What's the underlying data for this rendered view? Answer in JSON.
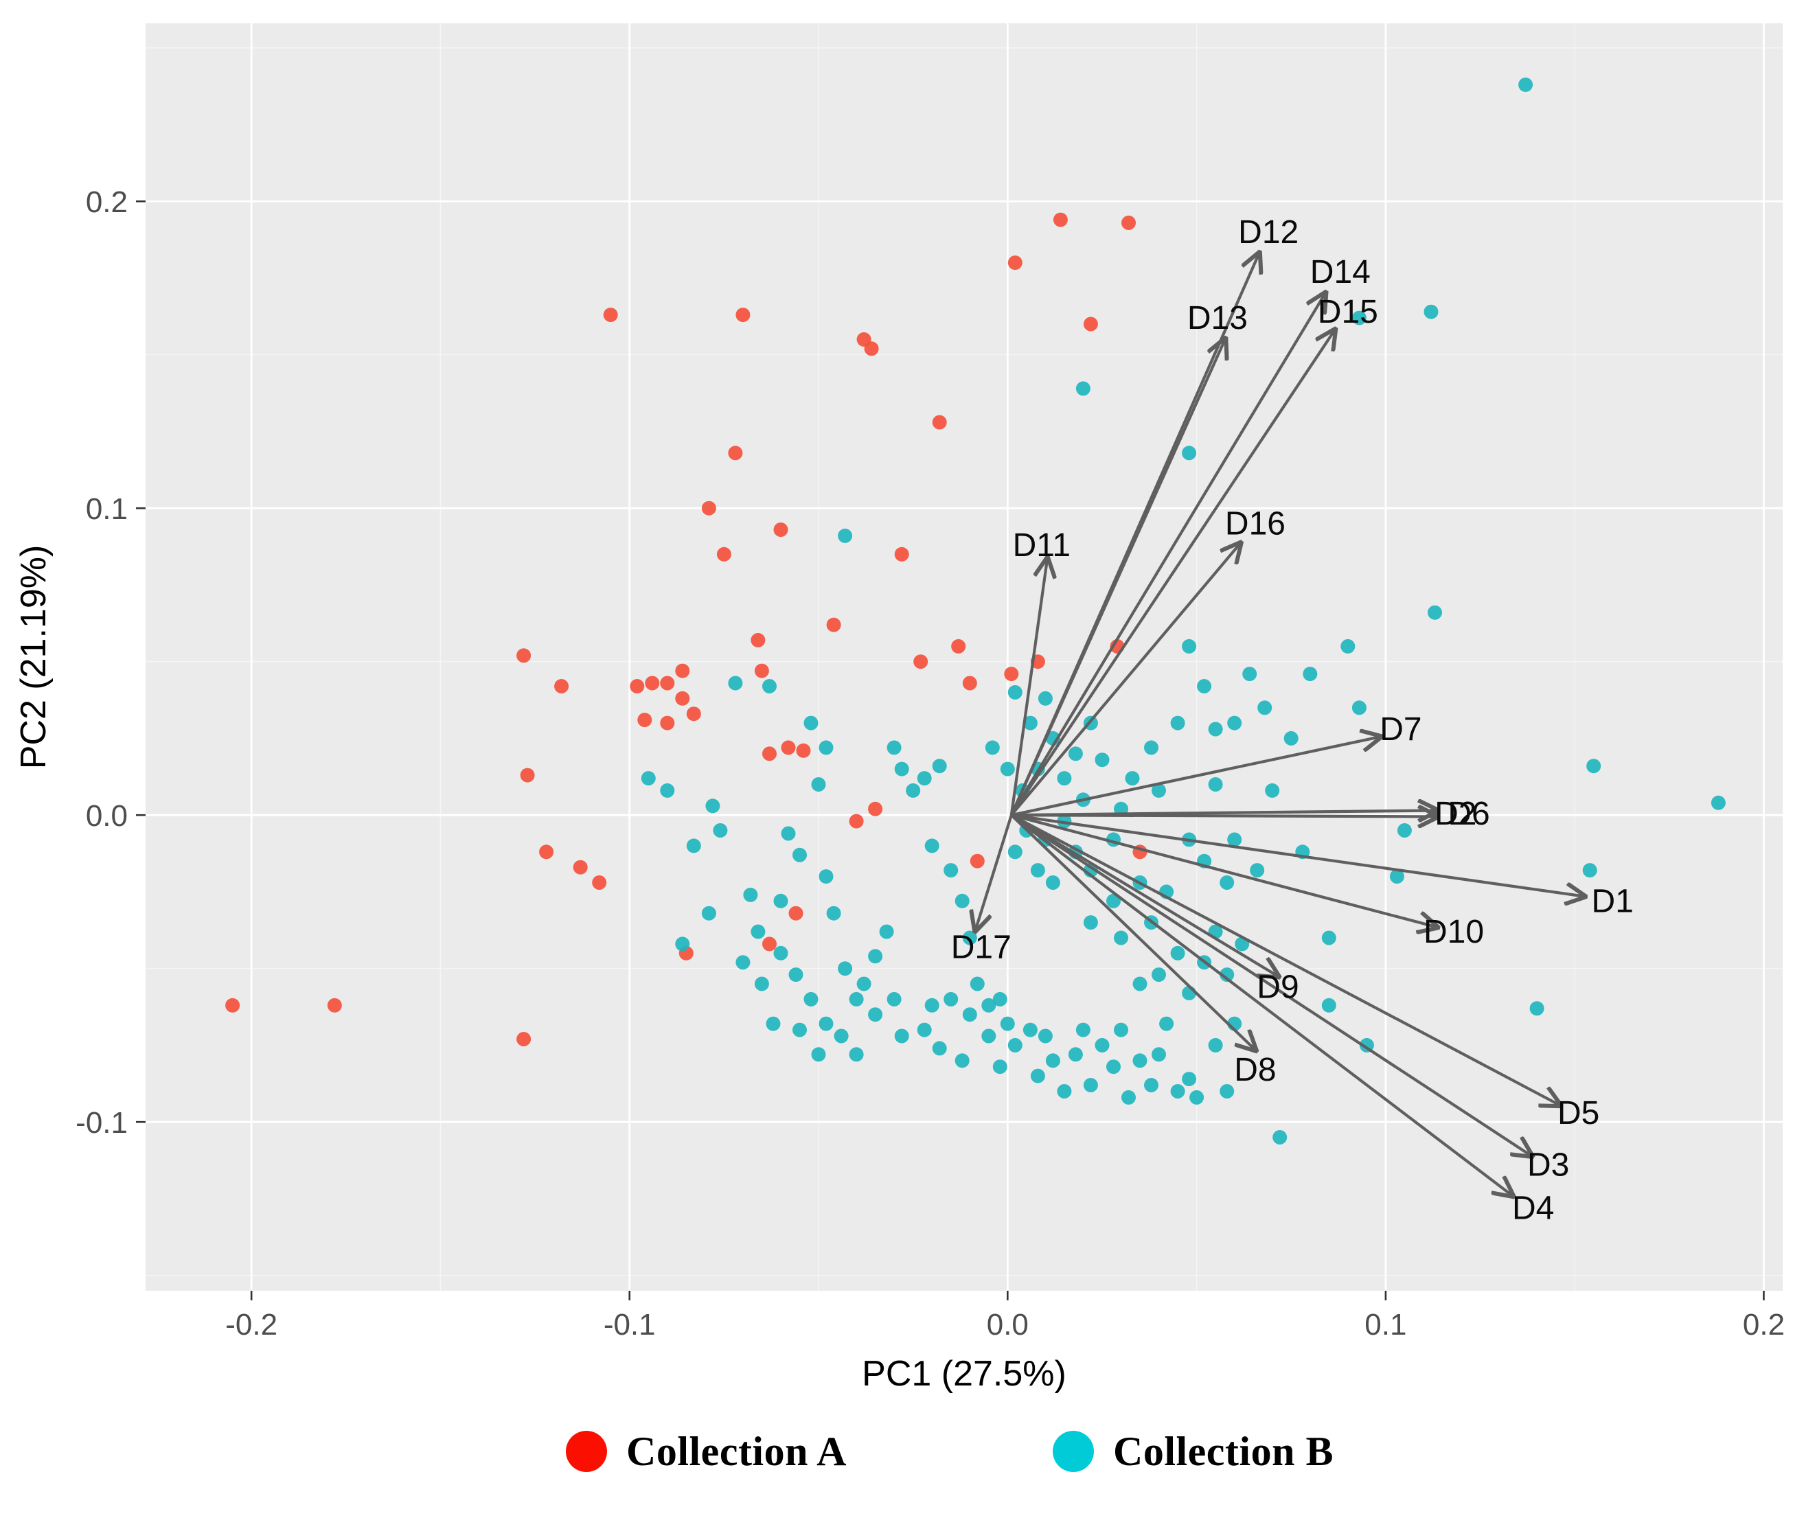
{
  "chart_data": {
    "type": "scatter",
    "title": "",
    "xlabel": "PC1 (27.5%)",
    "ylabel": "PC2 (21.19%)",
    "xlim": [
      -0.228,
      0.205
    ],
    "ylim": [
      -0.155,
      0.258
    ],
    "xticks": [
      -0.2,
      -0.1,
      0.0,
      0.1,
      0.2
    ],
    "xtick_labels": [
      "-0.2",
      "-0.1",
      "0.0",
      "0.1",
      "0.2"
    ],
    "yticks": [
      -0.1,
      0.0,
      0.1,
      0.2
    ],
    "ytick_labels": [
      "-0.1",
      "0.0",
      "0.1",
      "0.2"
    ],
    "xticks_minor": [
      -0.15,
      -0.05,
      0.05,
      0.15
    ],
    "yticks_minor": [
      -0.15,
      -0.05,
      0.05,
      0.15,
      0.25
    ],
    "grid": true,
    "panel_background": "#EBEBEB",
    "grid_major_color": "#FFFFFF",
    "grid_minor_color": "#F5F5F5",
    "tick_color": "#333333",
    "tick_label_color": "#4D4D4D",
    "axis_title_color": "#000000",
    "arrow_color": "#5F5F5F",
    "arrow_label_color": "#0A0A0A",
    "point_radius": 10.5,
    "series": [
      {
        "name": "Collection A",
        "color": "#F4503C",
        "points": [
          [
            -0.205,
            -0.062
          ],
          [
            -0.178,
            -0.062
          ],
          [
            -0.128,
            0.052
          ],
          [
            -0.127,
            0.013
          ],
          [
            -0.122,
            -0.012
          ],
          [
            -0.128,
            -0.073
          ],
          [
            -0.118,
            0.042
          ],
          [
            -0.113,
            -0.017
          ],
          [
            -0.105,
            0.163
          ],
          [
            -0.108,
            -0.022
          ],
          [
            -0.098,
            0.042
          ],
          [
            -0.094,
            0.043
          ],
          [
            -0.096,
            0.031
          ],
          [
            -0.09,
            0.03
          ],
          [
            -0.086,
            0.047
          ],
          [
            -0.086,
            0.038
          ],
          [
            -0.083,
            0.033
          ],
          [
            -0.085,
            -0.045
          ],
          [
            -0.079,
            0.1
          ],
          [
            -0.075,
            0.085
          ],
          [
            -0.07,
            0.163
          ],
          [
            -0.072,
            0.118
          ],
          [
            -0.066,
            0.057
          ],
          [
            -0.065,
            0.047
          ],
          [
            -0.06,
            0.093
          ],
          [
            -0.063,
            0.02
          ],
          [
            -0.058,
            0.022
          ],
          [
            -0.054,
            0.021
          ],
          [
            -0.056,
            -0.032
          ],
          [
            -0.063,
            -0.042
          ],
          [
            -0.046,
            0.062
          ],
          [
            -0.038,
            0.155
          ],
          [
            -0.036,
            0.152
          ],
          [
            -0.035,
            0.002
          ],
          [
            -0.028,
            0.085
          ],
          [
            -0.023,
            0.05
          ],
          [
            -0.018,
            0.128
          ],
          [
            -0.013,
            0.055
          ],
          [
            -0.01,
            0.043
          ],
          [
            -0.008,
            -0.015
          ],
          [
            0.002,
            0.18
          ],
          [
            0.001,
            0.046
          ],
          [
            0.008,
            0.05
          ],
          [
            0.014,
            0.194
          ],
          [
            0.022,
            0.16
          ],
          [
            0.032,
            0.193
          ],
          [
            0.029,
            0.055
          ],
          [
            0.035,
            -0.012
          ],
          [
            -0.04,
            -0.002
          ],
          [
            -0.09,
            0.043
          ]
        ]
      },
      {
        "name": "Collection B",
        "color": "#1FB5BE",
        "points": [
          [
            0.137,
            0.238
          ],
          [
            0.188,
            0.004
          ],
          [
            0.155,
            0.016
          ],
          [
            0.154,
            -0.018
          ],
          [
            0.14,
            -0.063
          ],
          [
            0.112,
            0.164
          ],
          [
            0.093,
            0.162
          ],
          [
            0.113,
            0.066
          ],
          [
            0.048,
            0.118
          ],
          [
            0.02,
            0.139
          ],
          [
            -0.043,
            0.091
          ],
          [
            0.072,
            -0.105
          ],
          [
            0.095,
            -0.075
          ],
          [
            0.085,
            -0.062
          ],
          [
            0.105,
            -0.005
          ],
          [
            0.103,
            -0.02
          ],
          [
            0.09,
            0.055
          ],
          [
            0.093,
            0.035
          ],
          [
            0.08,
            0.046
          ],
          [
            0.085,
            -0.04
          ],
          [
            0.068,
            0.035
          ],
          [
            0.064,
            0.046
          ],
          [
            0.06,
            0.03
          ],
          [
            0.055,
            0.028
          ],
          [
            0.052,
            0.042
          ],
          [
            0.048,
            0.055
          ],
          [
            0.045,
            0.03
          ],
          [
            0.075,
            0.025
          ],
          [
            0.07,
            0.008
          ],
          [
            0.078,
            -0.012
          ],
          [
            0.066,
            -0.018
          ],
          [
            0.06,
            -0.008
          ],
          [
            0.058,
            -0.022
          ],
          [
            0.052,
            -0.015
          ],
          [
            0.048,
            -0.008
          ],
          [
            0.055,
            0.01
          ],
          [
            0.002,
            0.04
          ],
          [
            0.006,
            0.03
          ],
          [
            0.01,
            0.038
          ],
          [
            0.012,
            0.025
          ],
          [
            0.008,
            0.015
          ],
          [
            0.004,
            0.008
          ],
          [
            0.0,
            0.015
          ],
          [
            -0.004,
            0.022
          ],
          [
            0.015,
            0.012
          ],
          [
            0.018,
            0.02
          ],
          [
            0.022,
            0.03
          ],
          [
            0.025,
            0.018
          ],
          [
            0.02,
            0.005
          ],
          [
            0.015,
            -0.002
          ],
          [
            0.01,
            -0.008
          ],
          [
            0.005,
            -0.005
          ],
          [
            0.002,
            -0.012
          ],
          [
            0.008,
            -0.018
          ],
          [
            0.012,
            -0.022
          ],
          [
            0.018,
            -0.012
          ],
          [
            0.022,
            -0.018
          ],
          [
            0.028,
            -0.008
          ],
          [
            0.03,
            0.002
          ],
          [
            0.033,
            0.012
          ],
          [
            0.038,
            0.022
          ],
          [
            0.04,
            0.008
          ],
          [
            0.035,
            -0.022
          ],
          [
            0.028,
            -0.028
          ],
          [
            0.022,
            -0.035
          ],
          [
            0.03,
            -0.04
          ],
          [
            0.038,
            -0.035
          ],
          [
            0.042,
            -0.025
          ],
          [
            0.045,
            -0.045
          ],
          [
            0.04,
            -0.052
          ],
          [
            0.035,
            -0.055
          ],
          [
            0.048,
            -0.058
          ],
          [
            0.052,
            -0.048
          ],
          [
            0.055,
            -0.038
          ],
          [
            0.058,
            -0.052
          ],
          [
            0.062,
            -0.042
          ],
          [
            -0.095,
            0.012
          ],
          [
            -0.09,
            0.008
          ],
          [
            -0.078,
            0.003
          ],
          [
            -0.076,
            -0.005
          ],
          [
            -0.083,
            -0.01
          ],
          [
            -0.086,
            -0.042
          ],
          [
            -0.079,
            -0.032
          ],
          [
            -0.068,
            -0.026
          ],
          [
            -0.066,
            -0.038
          ],
          [
            -0.06,
            -0.028
          ],
          [
            -0.072,
            0.043
          ],
          [
            -0.058,
            -0.006
          ],
          [
            -0.055,
            -0.013
          ],
          [
            -0.05,
            0.01
          ],
          [
            -0.048,
            -0.02
          ],
          [
            -0.046,
            -0.032
          ],
          [
            -0.043,
            -0.05
          ],
          [
            -0.04,
            -0.06
          ],
          [
            -0.038,
            -0.055
          ],
          [
            -0.035,
            -0.046
          ],
          [
            -0.032,
            -0.038
          ],
          [
            -0.03,
            -0.06
          ],
          [
            -0.028,
            -0.072
          ],
          [
            -0.035,
            -0.065
          ],
          [
            -0.04,
            -0.078
          ],
          [
            -0.028,
            0.015
          ],
          [
            -0.025,
            0.008
          ],
          [
            -0.022,
            0.012
          ],
          [
            -0.03,
            0.022
          ],
          [
            -0.018,
            0.016
          ],
          [
            -0.02,
            -0.01
          ],
          [
            -0.015,
            -0.018
          ],
          [
            -0.012,
            -0.028
          ],
          [
            -0.01,
            -0.04
          ],
          [
            -0.008,
            -0.055
          ],
          [
            -0.005,
            -0.062
          ],
          [
            -0.002,
            -0.06
          ],
          [
            0.0,
            -0.068
          ],
          [
            -0.005,
            -0.072
          ],
          [
            -0.01,
            -0.065
          ],
          [
            -0.015,
            -0.06
          ],
          [
            -0.02,
            -0.062
          ],
          [
            -0.022,
            -0.07
          ],
          [
            -0.018,
            -0.076
          ],
          [
            -0.012,
            -0.08
          ],
          [
            -0.048,
            0.022
          ],
          [
            -0.052,
            0.03
          ],
          [
            -0.063,
            0.042
          ],
          [
            0.002,
            -0.075
          ],
          [
            0.006,
            -0.07
          ],
          [
            0.01,
            -0.072
          ],
          [
            0.012,
            -0.08
          ],
          [
            0.018,
            -0.078
          ],
          [
            0.02,
            -0.07
          ],
          [
            0.025,
            -0.075
          ],
          [
            0.028,
            -0.082
          ],
          [
            0.03,
            -0.07
          ],
          [
            0.035,
            -0.08
          ],
          [
            0.038,
            -0.088
          ],
          [
            0.04,
            -0.078
          ],
          [
            0.045,
            -0.09
          ],
          [
            0.048,
            -0.086
          ],
          [
            0.05,
            -0.092
          ],
          [
            0.032,
            -0.092
          ],
          [
            0.022,
            -0.088
          ],
          [
            0.015,
            -0.09
          ],
          [
            0.008,
            -0.085
          ],
          [
            -0.002,
            -0.082
          ],
          [
            0.055,
            -0.075
          ],
          [
            0.06,
            -0.068
          ],
          [
            0.058,
            -0.09
          ],
          [
            0.042,
            -0.068
          ],
          [
            -0.06,
            -0.045
          ],
          [
            -0.056,
            -0.052
          ],
          [
            -0.065,
            -0.055
          ],
          [
            -0.07,
            -0.048
          ],
          [
            -0.052,
            -0.06
          ],
          [
            -0.048,
            -0.068
          ],
          [
            -0.044,
            -0.072
          ],
          [
            -0.05,
            -0.078
          ],
          [
            -0.055,
            -0.07
          ],
          [
            -0.062,
            -0.068
          ]
        ]
      }
    ],
    "loadings_origin": [
      0.001,
      0.0
    ],
    "loadings": [
      {
        "label": "D1",
        "end": [
          0.1525,
          -0.0265
        ],
        "label_pos": [
          0.16,
          -0.028
        ]
      },
      {
        "label": "D2",
        "end": [
          0.1135,
          -0.0005
        ],
        "label_pos": [
          0.1185,
          0.0005
        ]
      },
      {
        "label": "D6",
        "end": [
          0.1135,
          0.0015
        ],
        "label_pos": [
          0.122,
          0.0005
        ]
      },
      {
        "label": "D3",
        "end": [
          0.1385,
          -0.111
        ],
        "label_pos": [
          0.143,
          -0.114
        ]
      },
      {
        "label": "D4",
        "end": [
          0.1335,
          -0.124
        ],
        "label_pos": [
          0.139,
          -0.128
        ]
      },
      {
        "label": "D5",
        "end": [
          0.146,
          -0.0945
        ],
        "label_pos": [
          0.151,
          -0.097
        ]
      },
      {
        "label": "D7",
        "end": [
          0.0985,
          0.0255
        ],
        "label_pos": [
          0.104,
          0.028
        ]
      },
      {
        "label": "D8",
        "end": [
          0.0655,
          -0.0765
        ],
        "label_pos": [
          0.0655,
          -0.083
        ]
      },
      {
        "label": "D9",
        "end": [
          0.0715,
          -0.0525
        ],
        "label_pos": [
          0.0715,
          -0.056
        ]
      },
      {
        "label": "D10",
        "end": [
          0.1135,
          -0.0365
        ],
        "label_pos": [
          0.118,
          -0.038
        ]
      },
      {
        "label": "D11",
        "end": [
          0.0105,
          0.0835
        ],
        "label_pos": [
          0.009,
          0.088
        ]
      },
      {
        "label": "D12",
        "end": [
          0.0665,
          0.183
        ],
        "label_pos": [
          0.069,
          0.19
        ]
      },
      {
        "label": "D13",
        "end": [
          0.0575,
          0.155
        ],
        "label_pos": [
          0.0555,
          0.162
        ]
      },
      {
        "label": "D14",
        "end": [
          0.084,
          0.17
        ],
        "label_pos": [
          0.088,
          0.177
        ]
      },
      {
        "label": "D15",
        "end": [
          0.0865,
          0.158
        ],
        "label_pos": [
          0.09,
          0.164
        ]
      },
      {
        "label": "D16",
        "end": [
          0.0615,
          0.0885
        ],
        "label_pos": [
          0.0655,
          0.095
        ]
      },
      {
        "label": "D17",
        "end": [
          -0.0085,
          -0.0375
        ],
        "label_pos": [
          -0.007,
          -0.043
        ]
      }
    ],
    "legend": {
      "position": "bottom",
      "entries": [
        {
          "label": "Collection A",
          "color": "#FA0F00"
        },
        {
          "label": "Collection B",
          "color": "#00CBD6"
        }
      ]
    }
  }
}
